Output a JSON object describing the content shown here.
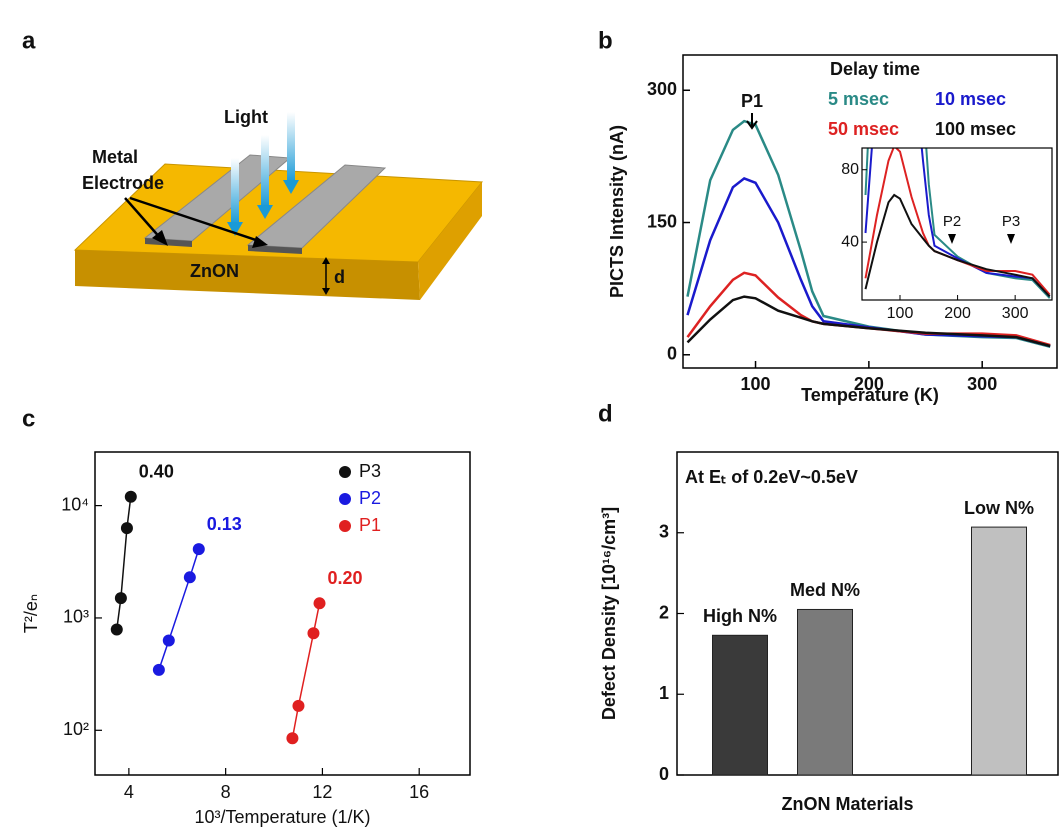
{
  "diagram": {
    "panel_label": "a",
    "light": "Light",
    "electrode": [
      "Metal",
      "Electrode"
    ],
    "material": "ZnON",
    "thickness": "d"
  },
  "chart_data": [
    {
      "type": "line",
      "panel_label": "b",
      "x_label": "Temperature (K)",
      "y_label": "PICTS Intensity (nA)",
      "annotation": "P1",
      "legend_title": "Delay time",
      "x": [
        40,
        60,
        80,
        90,
        100,
        120,
        140,
        150,
        160,
        200,
        250,
        300,
        330,
        360
      ],
      "series": [
        {
          "name": "5 msec",
          "color": "#2a8a86",
          "values": [
            66,
            198,
            255,
            265,
            261,
            204,
            118,
            72,
            44,
            32,
            23,
            20,
            19,
            9
          ]
        },
        {
          "name": "10 msec",
          "color": "#1a1acc",
          "values": [
            45,
            130,
            190,
            200,
            195,
            150,
            85,
            55,
            38,
            31,
            23,
            21,
            20,
            10
          ]
        },
        {
          "name": "50 msec",
          "color": "#dd2222",
          "values": [
            20,
            55,
            85,
            93,
            90,
            65,
            45,
            38,
            35,
            30,
            24,
            24,
            22,
            11
          ]
        },
        {
          "name": "100 msec",
          "color": "#111111",
          "values": [
            14,
            40,
            62,
            66,
            64,
            50,
            42,
            38,
            35,
            30,
            25,
            22,
            20,
            10
          ]
        }
      ],
      "xlim": [
        36,
        366
      ],
      "ylim": [
        -15,
        340
      ],
      "xticks": [
        100,
        200,
        300
      ],
      "yticks": [
        0,
        150,
        300
      ],
      "inset": {
        "xlim": [
          34,
          364
        ],
        "ylim": [
          8,
          92
        ],
        "xticks": [
          100,
          200,
          300
        ],
        "yticks": [
          40,
          80
        ],
        "annotations": [
          "P2",
          "P3"
        ]
      }
    },
    {
      "type": "scatter",
      "panel_label": "c",
      "x_label": "10³/Temperature (1/K)",
      "y_label": "T²/eₙ",
      "log_y": true,
      "fit_lines": true,
      "legend": "upper right",
      "series": [
        {
          "name": "P3",
          "color": "#111111",
          "slope_label": "0.40",
          "x": [
            3.5,
            3.67,
            3.92,
            4.08
          ],
          "values": [
            790,
            1500,
            6300,
            12000
          ]
        },
        {
          "name": "P2",
          "color": "#1a1ae0",
          "slope_label": "0.13",
          "x": [
            5.24,
            5.65,
            6.52,
            6.89
          ],
          "values": [
            345,
            630,
            2300,
            4100
          ]
        },
        {
          "name": "P1",
          "color": "#e02020",
          "slope_label": "0.20",
          "x": [
            10.76,
            11.01,
            11.63,
            11.88
          ],
          "values": [
            85,
            165,
            730,
            1350
          ]
        }
      ],
      "xlim": [
        2.6,
        18.1
      ],
      "ylim": [
        40,
        30000
      ],
      "xticks": [
        4,
        8,
        12,
        16
      ],
      "yticks": [
        {
          "value": 100,
          "label": "10²"
        },
        {
          "value": 1000,
          "label": "10³"
        },
        {
          "value": 10000,
          "label": "10⁴"
        }
      ]
    },
    {
      "type": "bar",
      "panel_label": "d",
      "x_label": "ZnON Materials",
      "y_label": "Defect Density [10¹⁶/cm³]",
      "annotation": "At Eₜ of 0.2eV~0.5eV",
      "categories": [
        "High N%",
        "Med N%",
        "Low N%"
      ],
      "values": [
        1.73,
        2.05,
        3.07
      ],
      "colors": [
        "#3a3a3a",
        "#7a7a7a",
        "#c0c0c0"
      ],
      "ylim": [
        0,
        4
      ],
      "yticks": [
        0,
        1,
        2,
        3
      ]
    }
  ]
}
